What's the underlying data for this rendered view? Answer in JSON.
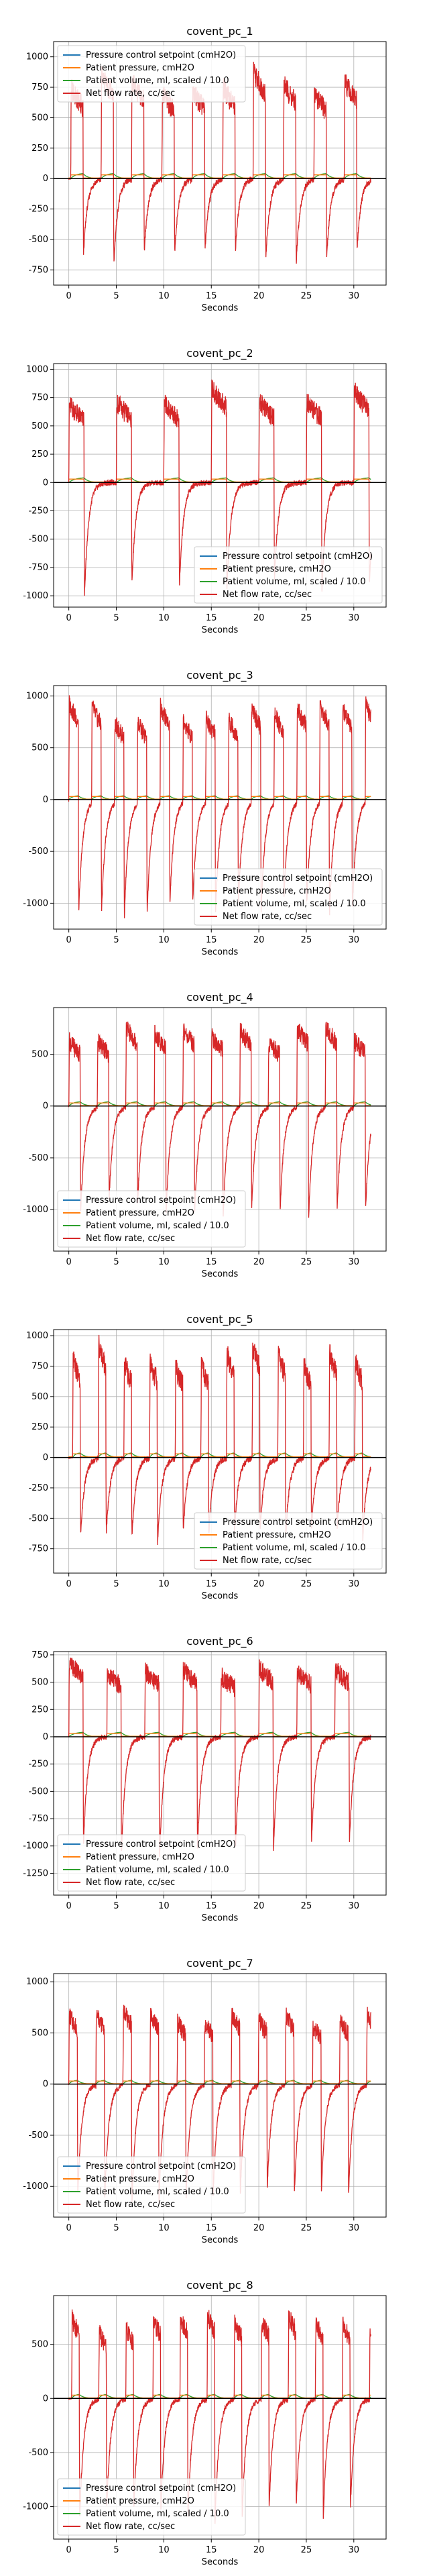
{
  "colors": {
    "setpoint": "#1f77b4",
    "pressure": "#ff7f0e",
    "volume": "#2ca02c",
    "flow": "#d62728",
    "grid": "#b0b0b0",
    "zero_line": "#000000"
  },
  "legend_labels": [
    "Pressure control setpoint (cmH2O)",
    "Patient pressure, cmH2O",
    "Patient volume, ml, scaled / 10.0",
    "Net flow rate, cc/sec"
  ],
  "chart_data": [
    {
      "type": "line",
      "title": "covent_pc_1",
      "xlabel": "Seconds",
      "ylabel": "",
      "xlim": [
        -1.6,
        33.4
      ],
      "ylim": [
        -875,
        1125
      ],
      "xticks": [
        0,
        5,
        10,
        15,
        20,
        25,
        30
      ],
      "yticks": [
        -750,
        -500,
        -250,
        0,
        250,
        500,
        750,
        1000
      ],
      "grid": true,
      "legend": "upper-left",
      "breath_period": 3.2,
      "inhale_time": 1.3,
      "flow_peak": 800,
      "flow_min": -650,
      "pressure_peak": 30,
      "volume_peak": 45,
      "start_breath": 0.2,
      "series_names": [
        "Pressure control setpoint (cmH2O)",
        "Patient pressure, cmH2O",
        "Patient volume, ml, scaled / 10.0",
        "Net flow rate, cc/sec"
      ]
    },
    {
      "type": "line",
      "title": "covent_pc_2",
      "xlabel": "Seconds",
      "ylabel": "",
      "xlim": [
        -1.6,
        33.4
      ],
      "ylim": [
        -1100,
        1050
      ],
      "xticks": [
        0,
        5,
        10,
        15,
        20,
        25,
        30
      ],
      "yticks": [
        -1000,
        -750,
        -500,
        -250,
        0,
        250,
        500,
        750,
        1000
      ],
      "grid": true,
      "legend": "lower-right",
      "breath_period": 5.0,
      "inhale_time": 1.6,
      "flow_peak": 780,
      "flow_min": -950,
      "pressure_peak": 30,
      "volume_peak": 45,
      "start_breath": 0.0,
      "series_names": [
        "Pressure control setpoint (cmH2O)",
        "Patient pressure, cmH2O",
        "Patient volume, ml, scaled / 10.0",
        "Net flow rate, cc/sec"
      ]
    },
    {
      "type": "line",
      "title": "covent_pc_3",
      "xlabel": "Seconds",
      "ylabel": "",
      "xlim": [
        -1.6,
        33.4
      ],
      "ylim": [
        -1250,
        1100
      ],
      "xticks": [
        0,
        5,
        10,
        15,
        20,
        25,
        30
      ],
      "yticks": [
        -1000,
        -500,
        0,
        500,
        1000
      ],
      "grid": true,
      "legend": "lower-right",
      "breath_period": 2.4,
      "inhale_time": 1.0,
      "flow_peak": 850,
      "flow_min": -1050,
      "pressure_peak": 30,
      "volume_peak": 40,
      "start_breath": 0.0,
      "series_names": [
        "Pressure control setpoint (cmH2O)",
        "Patient pressure, cmH2O",
        "Patient volume, ml, scaled / 10.0",
        "Net flow rate, cc/sec"
      ]
    },
    {
      "type": "line",
      "title": "covent_pc_4",
      "xlabel": "Seconds",
      "ylabel": "",
      "xlim": [
        -1.6,
        33.4
      ],
      "ylim": [
        -1400,
        950
      ],
      "xticks": [
        0,
        5,
        10,
        15,
        20,
        25,
        30
      ],
      "yticks": [
        -1000,
        -500,
        0,
        500
      ],
      "grid": true,
      "legend": "lower-left",
      "breath_period": 3.0,
      "inhale_time": 1.2,
      "flow_peak": 700,
      "flow_min": -1000,
      "pressure_peak": 30,
      "volume_peak": 45,
      "start_breath": 0.0,
      "series_names": [
        "Pressure control setpoint (cmH2O)",
        "Patient pressure, cmH2O",
        "Patient volume, ml, scaled / 10.0",
        "Net flow rate, cc/sec"
      ]
    },
    {
      "type": "line",
      "title": "covent_pc_5",
      "xlabel": "Seconds",
      "ylabel": "",
      "xlim": [
        -1.6,
        33.4
      ],
      "ylim": [
        -950,
        1050
      ],
      "xticks": [
        0,
        5,
        10,
        15,
        20,
        25,
        30
      ],
      "yticks": [
        -750,
        -500,
        -250,
        0,
        250,
        500,
        750,
        1000
      ],
      "grid": true,
      "legend": "lower-right",
      "breath_period": 2.7,
      "inhale_time": 0.8,
      "flow_peak": 850,
      "flow_min": -650,
      "pressure_peak": 30,
      "volume_peak": 40,
      "start_breath": 0.4,
      "series_names": [
        "Pressure control setpoint (cmH2O)",
        "Patient pressure, cmH2O",
        "Patient volume, ml, scaled / 10.0",
        "Net flow rate, cc/sec"
      ]
    },
    {
      "type": "line",
      "title": "covent_pc_6",
      "xlabel": "Seconds",
      "ylabel": "",
      "xlim": [
        -1.6,
        33.4
      ],
      "ylim": [
        -1450,
        780
      ],
      "xticks": [
        0,
        5,
        10,
        15,
        20,
        25,
        30
      ],
      "yticks": [
        -1250,
        -1000,
        -750,
        -500,
        -250,
        0,
        250,
        500,
        750
      ],
      "grid": true,
      "legend": "lower-left",
      "breath_period": 4.0,
      "inhale_time": 1.5,
      "flow_peak": 620,
      "flow_min": -1050,
      "pressure_peak": 30,
      "volume_peak": 45,
      "start_breath": 0.0,
      "series_names": [
        "Pressure control setpoint (cmH2O)",
        "Patient pressure, cmH2O",
        "Patient volume, ml, scaled / 10.0",
        "Net flow rate, cc/sec"
      ]
    },
    {
      "type": "line",
      "title": "covent_pc_7",
      "xlabel": "Seconds",
      "ylabel": "",
      "xlim": [
        -1.6,
        33.4
      ],
      "ylim": [
        -1300,
        1080
      ],
      "xticks": [
        0,
        5,
        10,
        15,
        20,
        25,
        30
      ],
      "yticks": [
        -1000,
        -500,
        0,
        500,
        1000
      ],
      "grid": true,
      "legend": "lower-left",
      "breath_period": 2.85,
      "inhale_time": 0.9,
      "flow_peak": 650,
      "flow_min": -1100,
      "pressure_peak": 30,
      "volume_peak": 40,
      "start_breath": 0.0,
      "series_names": [
        "Pressure control setpoint (cmH2O)",
        "Patient pressure, cmH2O",
        "Patient volume, ml, scaled / 10.0",
        "Net flow rate, cc/sec"
      ]
    },
    {
      "type": "line",
      "title": "covent_pc_8",
      "xlabel": "Seconds",
      "ylabel": "",
      "xlim": [
        -1.6,
        33.4
      ],
      "ylim": [
        -1300,
        950
      ],
      "xticks": [
        0,
        5,
        10,
        15,
        20,
        25,
        30
      ],
      "yticks": [
        -1000,
        -500,
        0,
        500
      ],
      "grid": true,
      "legend": "lower-left",
      "breath_period": 2.85,
      "inhale_time": 0.8,
      "flow_peak": 700,
      "flow_min": -1100,
      "pressure_peak": 30,
      "volume_peak": 40,
      "start_breath": 0.3,
      "series_names": [
        "Pressure control setpoint (cmH2O)",
        "Patient pressure, cmH2O",
        "Patient volume, ml, scaled / 10.0",
        "Net flow rate, cc/sec"
      ]
    }
  ]
}
